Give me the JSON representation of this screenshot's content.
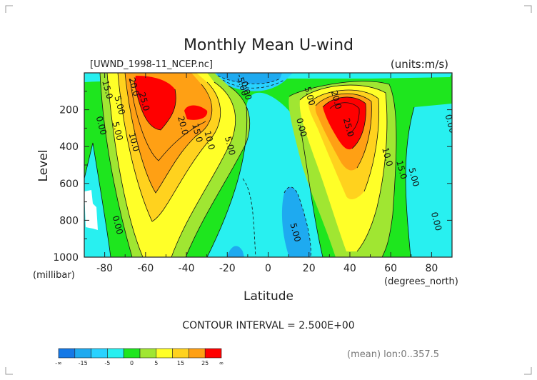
{
  "chart_data": {
    "type": "heatmap",
    "title": "Monthly Mean U-wind",
    "dataset_label": "[UWND_1998-11_NCEP.nc]",
    "units_label": "(units:m/s)",
    "xlabel": "Latitude",
    "ylabel": "Level",
    "x_unit_label": "(degrees_north)",
    "y_unit_label": "(millibar)",
    "xlim": [
      -90,
      90
    ],
    "ylim": [
      1000,
      0
    ],
    "x_ticks": [
      "-80",
      "-60",
      "-40",
      "-20",
      "0",
      "20",
      "40",
      "60",
      "80"
    ],
    "x_tick_values": [
      -80,
      -60,
      -40,
      -20,
      0,
      20,
      40,
      60,
      80
    ],
    "y_ticks": [
      "200",
      "400",
      "600",
      "800",
      "1000"
    ],
    "y_tick_values": [
      200,
      400,
      600,
      800,
      1000
    ],
    "contour_interval_text": "CONTOUR INTERVAL = 2.500E+00",
    "footer_text": "(mean) lon:0..357.5",
    "contour_labels": [
      {
        "text": "15.0",
        "lat": -80,
        "lev": 95
      },
      {
        "text": "20.0",
        "lat": -67,
        "lev": 80
      },
      {
        "text": "25.0",
        "lat": -62,
        "lev": 160
      },
      {
        "text": "5.00",
        "lat": -74,
        "lev": 180
      },
      {
        "text": "0.00",
        "lat": -83,
        "lev": 290
      },
      {
        "text": "5.00",
        "lat": -75,
        "lev": 320
      },
      {
        "text": "10.0",
        "lat": -67,
        "lev": 380
      },
      {
        "text": "20.0",
        "lat": -43,
        "lev": 290
      },
      {
        "text": "15.0",
        "lat": -36,
        "lev": 330
      },
      {
        "text": "10.0",
        "lat": -30,
        "lev": 370
      },
      {
        "text": "5.00",
        "lat": -20,
        "lev": 400
      },
      {
        "text": "-5.00",
        "lat": -14,
        "lev": 70
      },
      {
        "text": "0.00",
        "lat": -12,
        "lev": 100
      },
      {
        "text": "5.00",
        "lat": 19,
        "lev": 130
      },
      {
        "text": "0.00",
        "lat": 15,
        "lev": 300
      },
      {
        "text": "20.0",
        "lat": 32,
        "lev": 150
      },
      {
        "text": "25.0",
        "lat": 38,
        "lev": 300
      },
      {
        "text": "15.0",
        "lat": 64,
        "lev": 530
      },
      {
        "text": "10.0",
        "lat": 57,
        "lev": 460
      },
      {
        "text": "5.00",
        "lat": 70,
        "lev": 570
      },
      {
        "text": "0.00",
        "lat": -75,
        "lev": 830
      },
      {
        "text": "5.00",
        "lat": 12,
        "lev": 870
      },
      {
        "text": "0.00",
        "lat": 81,
        "lev": 810
      },
      {
        "text": "0.00",
        "lat": 135,
        "lev": 280
      }
    ],
    "colorbar": {
      "colors": [
        "#1478e6",
        "#1eaaf0",
        "#28d2ff",
        "#28f0f0",
        "#1ee61e",
        "#a0e632",
        "#ffff28",
        "#ffd21e",
        "#ffa014",
        "#ff0000"
      ],
      "labels": [
        "-∞",
        "-15",
        "-5",
        "0",
        "5",
        "15",
        "25",
        "∞"
      ]
    },
    "fill_levels": {
      "boundaries": [
        -15,
        -10,
        -5,
        0,
        5,
        10,
        15,
        20,
        25
      ],
      "colors": [
        "#1478e6",
        "#1eaaf0",
        "#28d2ff",
        "#28f0f0",
        "#1ee61e",
        "#a0e632",
        "#ffff28",
        "#ffd21e",
        "#ffa014",
        "#ff0000"
      ]
    }
  }
}
